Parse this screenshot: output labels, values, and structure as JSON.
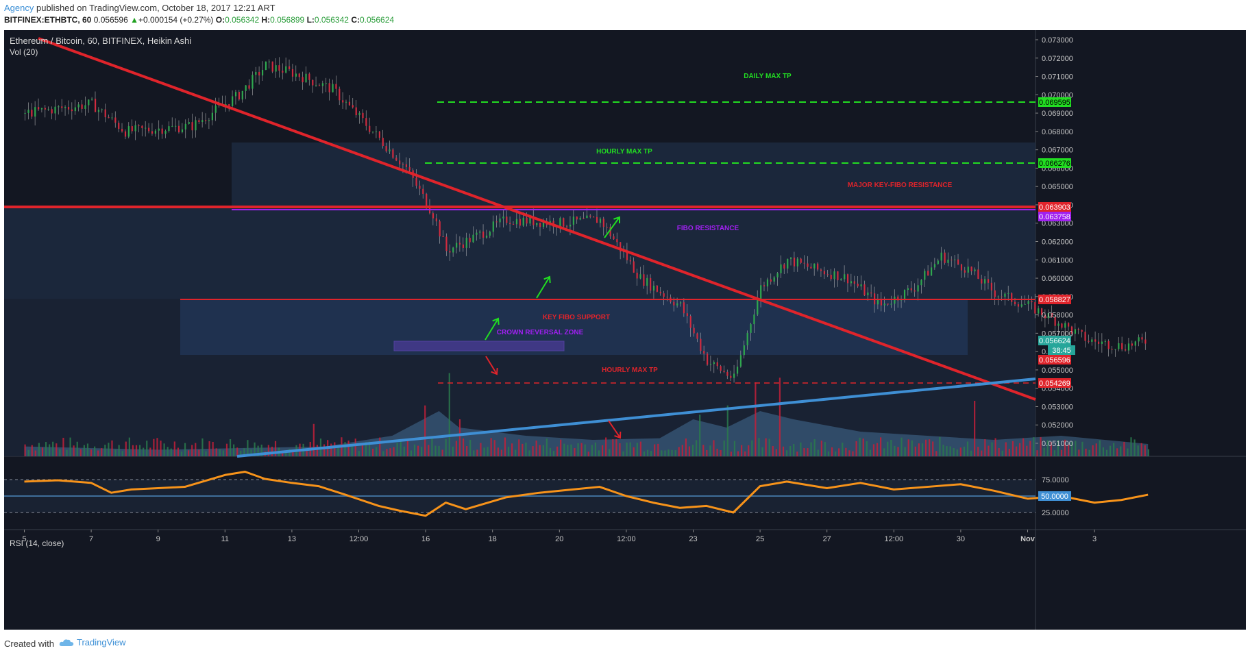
{
  "header": {
    "author": "Agency",
    "published": " published on TradingView.com, October 18, 2017 12:21 ART",
    "symbol": "BITFINEX:ETHBTC, 60",
    "last": "0.056596",
    "change": "+0.000154 (+0.27%)",
    "o_label": "O:",
    "o": "0.056342",
    "h_label": "H:",
    "h": "0.056899",
    "l_label": "L:",
    "l": "0.056342",
    "c_label": "C:",
    "c": "0.056624"
  },
  "legend": {
    "title": "Ethereum / Bitcoin, 60, BITFINEX, Heikin Ashi",
    "volume": "Vol (20)",
    "rsi": "RSI (14, close)"
  },
  "footer": {
    "created": "Created with",
    "brand": "TradingView"
  },
  "colors": {
    "background": "#131722",
    "up": "#26a69a",
    "down": "#ef5350",
    "trend_red": "#e0242b",
    "trend_blue": "#3f8fd4",
    "green_tp": "#22dd22",
    "red_tp": "#e0242b",
    "purple": "#a020f0",
    "rsi_line": "#f7931a"
  },
  "chart_data": {
    "type": "candlestick",
    "title": "Ethereum / Bitcoin, 60, BITFINEX, Heikin Ashi",
    "x_labels": [
      "5",
      "7",
      "9",
      "11",
      "13",
      "12:00",
      "16",
      "18",
      "20",
      "12:00",
      "23",
      "25",
      "27",
      "12:00",
      "30",
      "Nov",
      "3"
    ],
    "y_ticks": [
      "0.073000",
      "0.072000",
      "0.071000",
      "0.070000",
      "0.069000",
      "0.068000",
      "0.067000",
      "0.066000",
      "0.065000",
      "0.064000",
      "0.063000",
      "0.062000",
      "0.061000",
      "0.060000",
      "0.059000",
      "0.058000",
      "0.057000",
      "0.056000",
      "0.055000",
      "0.054000",
      "0.053000",
      "0.052000",
      "0.051000"
    ],
    "ylim": [
      0.0505,
      0.0737
    ],
    "price_path": [
      [
        0.0,
        0.069
      ],
      [
        1.0,
        0.0695
      ],
      [
        1.5,
        0.068
      ],
      [
        2.5,
        0.0683
      ],
      [
        3.2,
        0.07
      ],
      [
        3.6,
        0.0716
      ],
      [
        4.0,
        0.0712
      ],
      [
        4.6,
        0.0703
      ],
      [
        5.2,
        0.068
      ],
      [
        5.7,
        0.066
      ],
      [
        6.1,
        0.0635
      ],
      [
        6.3,
        0.0615
      ],
      [
        6.7,
        0.0622
      ],
      [
        7.2,
        0.0632
      ],
      [
        8.0,
        0.063
      ],
      [
        8.6,
        0.0632
      ],
      [
        9.2,
        0.06
      ],
      [
        9.8,
        0.0585
      ],
      [
        10.2,
        0.0555
      ],
      [
        10.6,
        0.0545
      ],
      [
        11.0,
        0.0595
      ],
      [
        11.4,
        0.061
      ],
      [
        11.8,
        0.0605
      ],
      [
        12.3,
        0.06
      ],
      [
        12.8,
        0.0585
      ],
      [
        13.3,
        0.0595
      ],
      [
        13.7,
        0.0612
      ],
      [
        14.1,
        0.0605
      ],
      [
        14.5,
        0.0592
      ],
      [
        15.0,
        0.0585
      ],
      [
        15.5,
        0.0575
      ],
      [
        15.9,
        0.0566
      ],
      [
        16.4,
        0.0563
      ],
      [
        16.8,
        0.0566
      ]
    ],
    "volume_profile": [
      [
        0.0,
        0.12
      ],
      [
        2.0,
        0.08
      ],
      [
        4.5,
        0.12
      ],
      [
        5.5,
        0.25
      ],
      [
        6.2,
        0.55
      ],
      [
        6.5,
        0.35
      ],
      [
        7.5,
        0.25
      ],
      [
        8.5,
        0.2
      ],
      [
        9.5,
        0.22
      ],
      [
        10.0,
        0.45
      ],
      [
        10.5,
        0.35
      ],
      [
        11.0,
        0.55
      ],
      [
        11.5,
        0.45
      ],
      [
        12.5,
        0.3
      ],
      [
        13.5,
        0.25
      ],
      [
        14.5,
        0.2
      ],
      [
        15.5,
        0.25
      ],
      [
        16.8,
        0.15
      ]
    ],
    "rsi": {
      "levels": [
        "75.0000",
        "50.0000",
        "25.0000"
      ],
      "current": "50.0000",
      "path": [
        [
          0.0,
          72
        ],
        [
          0.5,
          74
        ],
        [
          1.0,
          70
        ],
        [
          1.3,
          55
        ],
        [
          1.6,
          60
        ],
        [
          2.0,
          62
        ],
        [
          2.4,
          64
        ],
        [
          3.0,
          82
        ],
        [
          3.3,
          87
        ],
        [
          3.6,
          76
        ],
        [
          4.0,
          70
        ],
        [
          4.4,
          65
        ],
        [
          4.8,
          52
        ],
        [
          5.3,
          35
        ],
        [
          5.6,
          28
        ],
        [
          6.0,
          20
        ],
        [
          6.3,
          40
        ],
        [
          6.6,
          30
        ],
        [
          7.2,
          48
        ],
        [
          7.7,
          55
        ],
        [
          8.2,
          60
        ],
        [
          8.6,
          64
        ],
        [
          9.0,
          50
        ],
        [
          9.4,
          40
        ],
        [
          9.8,
          32
        ],
        [
          10.2,
          35
        ],
        [
          10.6,
          25
        ],
        [
          11.0,
          65
        ],
        [
          11.4,
          72
        ],
        [
          12.0,
          62
        ],
        [
          12.5,
          70
        ],
        [
          13.0,
          60
        ],
        [
          13.5,
          64
        ],
        [
          14.0,
          68
        ],
        [
          14.5,
          58
        ],
        [
          15.0,
          46
        ],
        [
          15.5,
          50
        ],
        [
          16.0,
          40
        ],
        [
          16.4,
          44
        ],
        [
          16.8,
          52
        ]
      ]
    },
    "levels": [
      {
        "label": "0.069595",
        "bg": "#22dd22",
        "fg": "#000000"
      },
      {
        "label": "0.066276",
        "bg": "#22dd22",
        "fg": "#000000"
      },
      {
        "label": "0.063903",
        "bg": "#e0242b",
        "fg": "#ffffff"
      },
      {
        "label": "0.063758",
        "bg": "#a020f0",
        "fg": "#ffffff"
      },
      {
        "label": "0.058827",
        "bg": "#e0242b",
        "fg": "#ffffff"
      },
      {
        "label": "0.056624",
        "bg": "#26a69a",
        "fg": "#ffffff"
      },
      {
        "label": "38:45",
        "bg": "#26a69a",
        "fg": "#ffffff"
      },
      {
        "label": "0.056596",
        "bg": "#e0242b",
        "fg": "#ffffff"
      },
      {
        "label": "0.054269",
        "bg": "#e0242b",
        "fg": "#ffffff"
      }
    ],
    "annotations": [
      {
        "text": "DAILY MAX TP",
        "color": "#22dd22"
      },
      {
        "text": "HOURLY MAX TP",
        "color": "#22dd22"
      },
      {
        "text": "MAJOR KEY-FIBO RESISTANCE",
        "color": "#e0242b"
      },
      {
        "text": "FIBO RESISTANCE",
        "color": "#a020f0"
      },
      {
        "text": "KEY FIBO SUPPORT",
        "color": "#e0242b"
      },
      {
        "text": "CROWN REVERSAL ZONE",
        "color": "#a020f0"
      },
      {
        "text": "HOURLY MAX TP",
        "color": "#e0242b"
      }
    ]
  }
}
